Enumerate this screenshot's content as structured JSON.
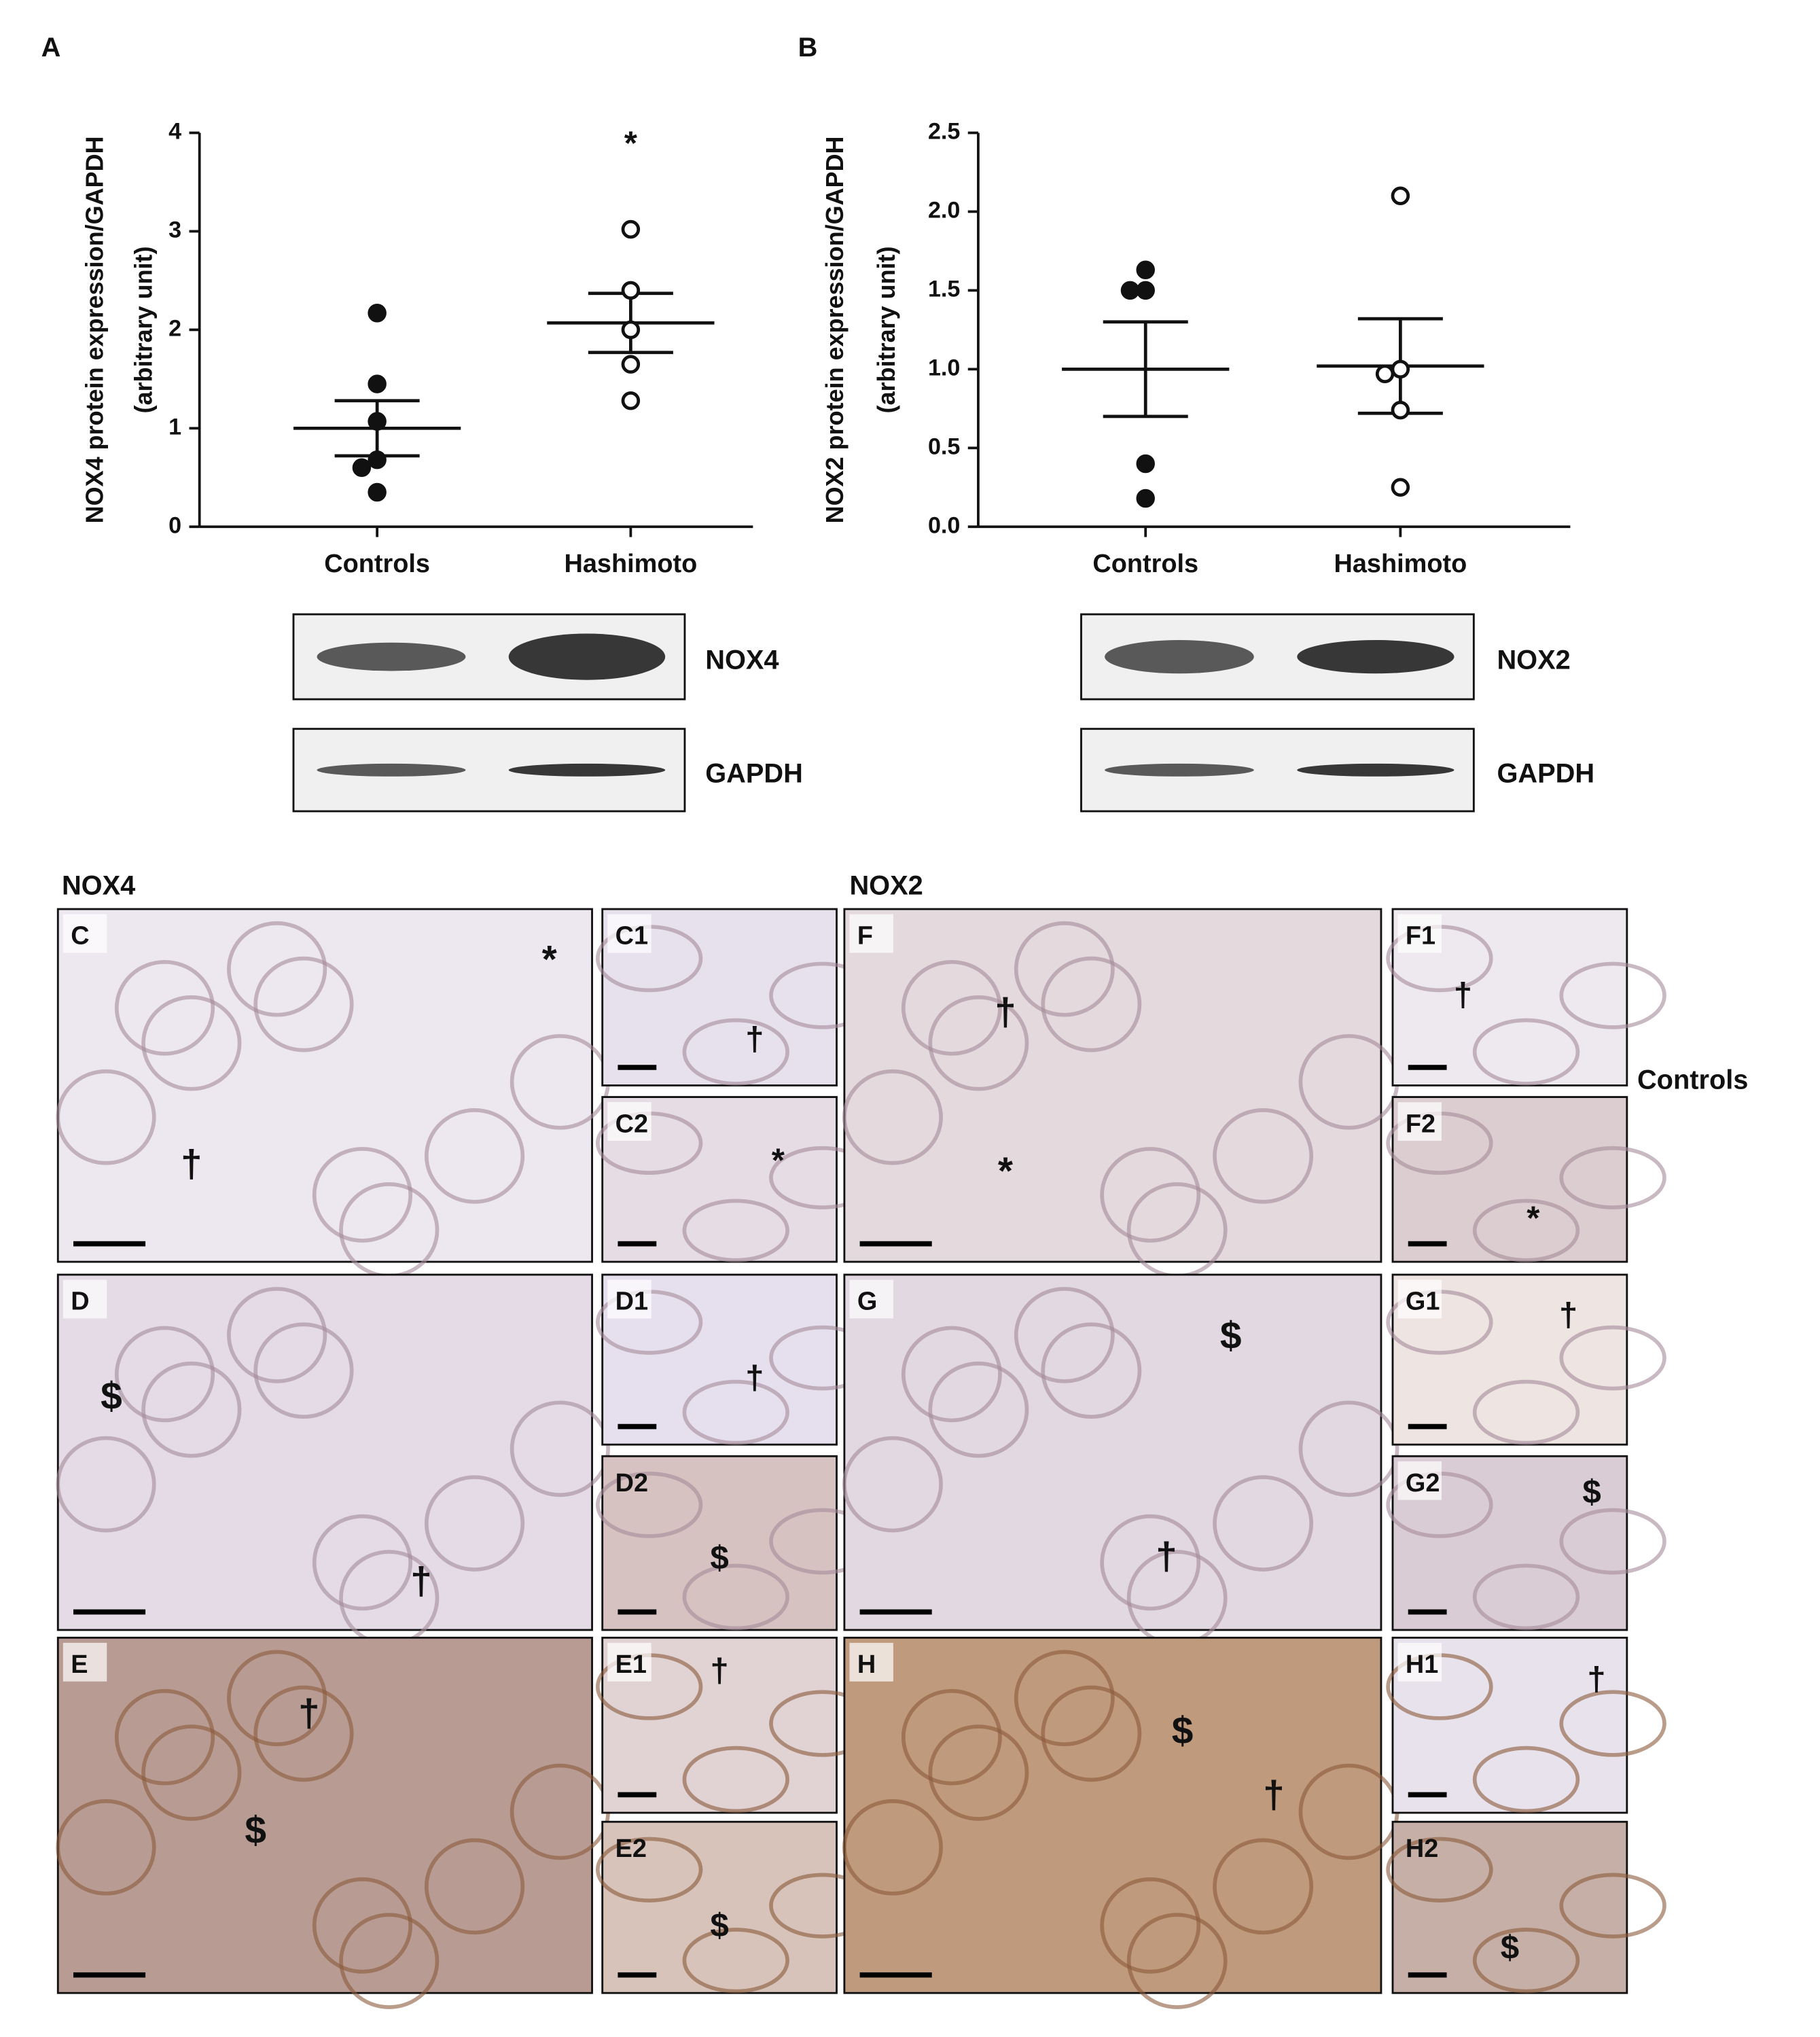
{
  "chart_data": [
    {
      "type": "strip",
      "panel": "A",
      "ylabel": "NOX4 protein expression/GAPDH",
      "ylabel_sub": "(arbitrary unit)",
      "categories": [
        "Controls",
        "Hashimoto"
      ],
      "groups": [
        {
          "values": [
            2.17,
            1.45,
            1.07,
            0.68,
            0.6,
            0.35
          ],
          "mean": 1.0,
          "sem": 0.28,
          "filled": true
        },
        {
          "values": [
            3.02,
            2.4,
            2.0,
            1.65,
            1.28
          ],
          "mean": 2.07,
          "sem": 0.3,
          "filled": false
        }
      ],
      "ylim": [
        0,
        4
      ],
      "yticks": [
        0,
        1,
        2,
        3,
        4
      ],
      "annotations": [
        {
          "text": "*",
          "category": "Hashimoto"
        }
      ],
      "blots": [
        "NOX4",
        "GAPDH"
      ]
    },
    {
      "type": "strip",
      "panel": "B",
      "ylabel": "NOX2 protein expression/GAPDH",
      "ylabel_sub": "(arbitrary unit)",
      "categories": [
        "Controls",
        "Hashimoto"
      ],
      "groups": [
        {
          "values": [
            1.63,
            1.5,
            1.5,
            0.4,
            0.18
          ],
          "mean": 1.0,
          "sem": 0.3,
          "filled": true
        },
        {
          "values": [
            2.1,
            1.0,
            0.97,
            0.74,
            0.25
          ],
          "mean": 1.02,
          "sem": 0.3,
          "filled": false
        }
      ],
      "ylim": [
        0,
        2.5
      ],
      "yticks": [
        {
          "value": 0,
          "label": "0.0"
        },
        0.5,
        {
          "value": 1,
          "label": "1.0"
        },
        1.5,
        {
          "value": 2,
          "label": "2.0"
        },
        2.5
      ],
      "blots": [
        "NOX2",
        "GAPDH"
      ]
    }
  ],
  "histology": {
    "headings": [
      "NOX4",
      "NOX2"
    ],
    "row_label": "Controls",
    "panels": [
      {
        "label": "C",
        "symbols": [
          "*",
          "†"
        ]
      },
      {
        "label": "C1",
        "symbols": [
          "†"
        ]
      },
      {
        "label": "C2",
        "symbols": [
          "*"
        ]
      },
      {
        "label": "F",
        "symbols": [
          "†",
          "*"
        ]
      },
      {
        "label": "F1",
        "symbols": [
          "†"
        ]
      },
      {
        "label": "F2",
        "symbols": [
          "*"
        ]
      },
      {
        "label": "D",
        "symbols": [
          "$",
          "†"
        ]
      },
      {
        "label": "D1",
        "symbols": [
          "†"
        ]
      },
      {
        "label": "D2",
        "symbols": [
          "$"
        ],
        "label_color": "#f2e600"
      },
      {
        "label": "G",
        "symbols": [
          "$",
          "†"
        ]
      },
      {
        "label": "G1",
        "symbols": [
          "†"
        ]
      },
      {
        "label": "G2",
        "symbols": [
          "$"
        ]
      },
      {
        "label": "E",
        "symbols": [
          "†",
          "$"
        ]
      },
      {
        "label": "E1",
        "symbols": [
          "†"
        ]
      },
      {
        "label": "E2",
        "symbols": [
          "$"
        ],
        "label_color": "#f2e600"
      },
      {
        "label": "H",
        "symbols": [
          "$",
          "†"
        ]
      },
      {
        "label": "H1",
        "symbols": [
          "†"
        ]
      },
      {
        "label": "H2",
        "symbols": [
          "$"
        ],
        "label_color": "#f2e600"
      }
    ]
  }
}
